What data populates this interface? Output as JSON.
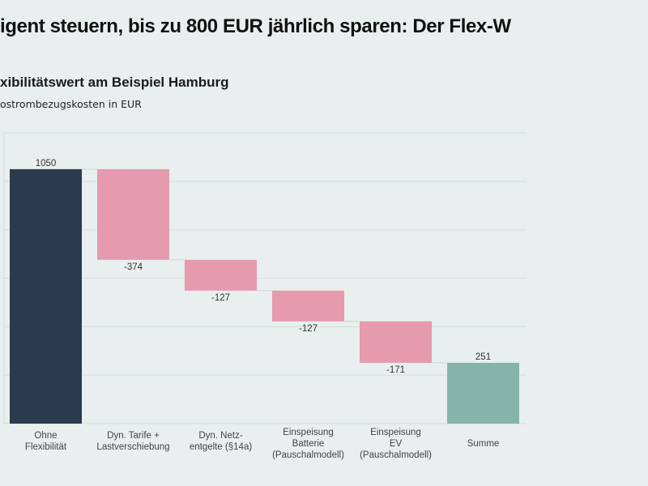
{
  "title": "igent steuern, bis zu 800 EUR jährlich sparen: Der Flex-W",
  "subtitle": "xibilitätswert am Beispiel Hamburg",
  "caption": "ostrombezugskosten in EUR",
  "chart_data": {
    "type": "waterfall",
    "title": "xibilitätswert am Beispiel Hamburg",
    "ylabel": "ostrombezugskosten in EUR",
    "categories": [
      [
        "Ohne",
        "Flexibilität"
      ],
      [
        "Dyn. Tarife +",
        "Lastverschiebung"
      ],
      [
        "Dyn. Netz-",
        "entgelte (§14a)"
      ],
      [
        "Einspeisung",
        "Batterie",
        "(Pauschalmodell)"
      ],
      [
        "Einspeisung",
        "EV",
        "(Pauschalmodell)"
      ],
      [
        "Summe"
      ]
    ],
    "values": [
      1050,
      -374,
      -127,
      -127,
      -171,
      251
    ],
    "labels": [
      "1050",
      "-374",
      "-127",
      "-127",
      "-171",
      "251"
    ],
    "kinds": [
      "total",
      "delta",
      "delta",
      "delta",
      "delta",
      "total"
    ],
    "ylim": [
      0,
      1200
    ],
    "gridlines": [
      0,
      200,
      400,
      600,
      800,
      1000,
      1200
    ],
    "grid": true,
    "colors": {
      "start": "#2a3b4d",
      "decrease": "#e59aad",
      "total": "#84b5a8",
      "grid": "#d5dcdb",
      "background": "#e8efee"
    }
  }
}
